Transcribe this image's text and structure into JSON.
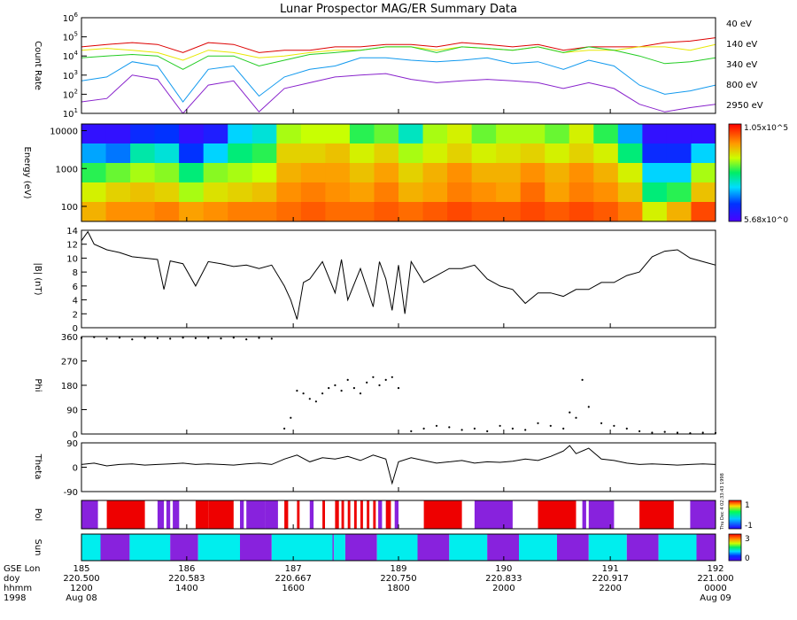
{
  "title": "Lunar Prospector MAG/ER Summary Data",
  "chart_data": [
    {
      "type": "line",
      "panel": "count-rate",
      "ylabel": "Count Rate",
      "yscale": "log",
      "ylim": [
        10,
        1000000
      ],
      "ytick_labels": [
        "10^1",
        "10^2",
        "10^3",
        "10^4",
        "10^5",
        "10^6"
      ],
      "x": [
        220.5,
        220.52,
        220.54,
        220.56,
        220.58,
        220.6,
        220.62,
        220.64,
        220.66,
        220.68,
        220.7,
        220.72,
        220.74,
        220.76,
        220.78,
        220.8,
        220.82,
        220.84,
        220.86,
        220.88,
        220.9,
        220.92,
        220.94,
        220.96,
        220.98,
        221.0
      ],
      "series": [
        {
          "name": "40 eV",
          "color": "#dd0000",
          "values": [
            30000,
            40000,
            50000,
            40000,
            15000,
            50000,
            40000,
            15000,
            20000,
            20000,
            30000,
            30000,
            40000,
            40000,
            30000,
            50000,
            40000,
            30000,
            40000,
            20000,
            30000,
            30000,
            30000,
            50000,
            60000,
            90000
          ]
        },
        {
          "name": "140 eV",
          "color": "#e8e800",
          "values": [
            20000,
            25000,
            20000,
            15000,
            6000,
            20000,
            15000,
            8000,
            10000,
            15000,
            20000,
            20000,
            30000,
            30000,
            20000,
            30000,
            25000,
            20000,
            30000,
            15000,
            20000,
            20000,
            30000,
            30000,
            20000,
            40000
          ]
        },
        {
          "name": "340 eV",
          "color": "#22cc22",
          "values": [
            8000,
            10000,
            12000,
            10000,
            2000,
            10000,
            10000,
            3000,
            6000,
            12000,
            15000,
            20000,
            30000,
            30000,
            15000,
            30000,
            25000,
            20000,
            30000,
            15000,
            30000,
            20000,
            10000,
            4000,
            5000,
            8000
          ]
        },
        {
          "name": "800 eV",
          "color": "#1199ee",
          "values": [
            500,
            800,
            5000,
            3000,
            40,
            2000,
            3000,
            80,
            800,
            2000,
            3000,
            8000,
            8000,
            6000,
            5000,
            6000,
            8000,
            4000,
            5000,
            2000,
            6000,
            3000,
            300,
            100,
            150,
            300
          ]
        },
        {
          "name": "2950 eV",
          "color": "#8822cc",
          "values": [
            40,
            60,
            1000,
            600,
            10,
            300,
            500,
            12,
            200,
            400,
            800,
            1000,
            1200,
            600,
            400,
            500,
            600,
            500,
            400,
            200,
            400,
            200,
            30,
            12,
            20,
            30
          ]
        }
      ]
    },
    {
      "type": "heatmap",
      "panel": "energy-spectrogram",
      "ylabel": "Energy (eV)",
      "yscale": "log",
      "ylim": [
        40,
        15000
      ],
      "ytick_labels": [
        "100",
        "1000",
        "10000"
      ],
      "colorbar": {
        "max_label": "1.05x10^5",
        "min_label": "5.68x10^0",
        "scale": "log"
      },
      "energies_eV": [
        20000,
        5000,
        1000,
        300,
        80
      ],
      "x": [
        220.5,
        220.52,
        220.54,
        220.56,
        220.58,
        220.6,
        220.62,
        220.64,
        220.66,
        220.68,
        220.7,
        220.72,
        220.74,
        220.76,
        220.78,
        220.8,
        220.82,
        220.84,
        220.86,
        220.88,
        220.9,
        220.92,
        220.94,
        220.96,
        220.98,
        221.0
      ],
      "log_flux": [
        [
          1.0,
          1.0,
          1.4,
          1.5,
          1.0,
          1.2,
          2.2,
          2.4,
          3.4,
          3.5,
          3.5,
          3.0,
          3.2,
          2.5,
          3.4,
          3.6,
          3.2,
          3.4,
          3.4,
          3.2,
          3.6,
          3.0,
          2.0,
          1.0,
          1.0,
          1.0
        ],
        [
          2.0,
          1.8,
          2.6,
          2.4,
          1.5,
          2.2,
          2.8,
          3.0,
          3.8,
          3.8,
          3.9,
          3.6,
          3.8,
          3.4,
          3.6,
          3.8,
          3.6,
          3.7,
          3.8,
          3.6,
          3.8,
          3.6,
          2.8,
          1.4,
          1.4,
          2.2
        ],
        [
          3.0,
          3.2,
          3.4,
          3.3,
          2.8,
          3.3,
          3.4,
          3.5,
          4.0,
          4.1,
          4.1,
          3.9,
          4.1,
          3.8,
          4.0,
          4.2,
          4.0,
          4.0,
          4.2,
          4.0,
          4.2,
          4.0,
          3.6,
          2.2,
          2.2,
          3.4
        ],
        [
          3.6,
          3.8,
          3.9,
          3.8,
          3.4,
          3.7,
          3.8,
          3.9,
          4.2,
          4.3,
          4.2,
          4.1,
          4.3,
          4.0,
          4.1,
          4.3,
          4.2,
          4.1,
          4.4,
          4.1,
          4.3,
          4.2,
          3.9,
          2.8,
          3.0,
          3.9
        ],
        [
          4.0,
          4.2,
          4.2,
          4.3,
          4.1,
          4.2,
          4.3,
          4.3,
          4.4,
          4.5,
          4.4,
          4.4,
          4.5,
          4.4,
          4.5,
          4.6,
          4.5,
          4.5,
          4.6,
          4.5,
          4.6,
          4.5,
          4.3,
          3.6,
          4.0,
          4.6
        ]
      ]
    },
    {
      "type": "line",
      "panel": "field-magnitude",
      "ylabel": "|B| (nT)",
      "ylim": [
        0,
        14
      ],
      "yticks": [
        0,
        2,
        4,
        6,
        8,
        10,
        12,
        14
      ],
      "x": [
        220.5,
        220.505,
        220.51,
        220.52,
        220.53,
        220.54,
        220.55,
        220.56,
        220.565,
        220.57,
        220.58,
        220.59,
        220.6,
        220.61,
        220.62,
        220.63,
        220.64,
        220.65,
        220.66,
        220.665,
        220.67,
        220.675,
        220.68,
        220.69,
        220.7,
        220.705,
        220.71,
        220.72,
        220.73,
        220.735,
        220.74,
        220.745,
        220.75,
        220.755,
        220.76,
        220.77,
        220.78,
        220.79,
        220.8,
        220.81,
        220.82,
        220.83,
        220.84,
        220.85,
        220.86,
        220.87,
        220.88,
        220.89,
        220.9,
        220.91,
        220.92,
        220.93,
        220.94,
        220.95,
        220.96,
        220.97,
        220.98,
        220.99,
        221.0
      ],
      "values": [
        12.5,
        13.8,
        12.0,
        11.2,
        10.8,
        10.2,
        10.0,
        9.8,
        5.5,
        9.6,
        9.2,
        6.0,
        9.5,
        9.2,
        8.8,
        9.0,
        8.5,
        9.0,
        6.0,
        4.0,
        1.2,
        6.5,
        7.0,
        9.5,
        5.0,
        9.8,
        4.0,
        8.5,
        3.0,
        9.5,
        7.0,
        2.5,
        9.0,
        2.0,
        9.5,
        6.5,
        7.5,
        8.5,
        8.5,
        9.0,
        7.0,
        6.0,
        5.5,
        3.5,
        5.0,
        5.0,
        4.5,
        5.5,
        5.5,
        6.5,
        6.5,
        7.5,
        8.0,
        10.2,
        11.0,
        11.2,
        10.0,
        9.5,
        9.0
      ]
    },
    {
      "type": "scatter",
      "panel": "phi",
      "ylabel": "Phi",
      "ylim": [
        0,
        360
      ],
      "yticks": [
        0,
        90,
        180,
        270,
        360
      ],
      "x": [
        220.5,
        220.51,
        220.52,
        220.53,
        220.54,
        220.55,
        220.56,
        220.57,
        220.58,
        220.59,
        220.6,
        220.61,
        220.62,
        220.63,
        220.64,
        220.65,
        220.66,
        220.665,
        220.67,
        220.675,
        220.68,
        220.685,
        220.69,
        220.695,
        220.7,
        220.705,
        220.71,
        220.715,
        220.72,
        220.725,
        220.73,
        220.735,
        220.74,
        220.745,
        220.75,
        220.76,
        220.77,
        220.78,
        220.79,
        220.8,
        220.81,
        220.82,
        220.83,
        220.84,
        220.85,
        220.86,
        220.87,
        220.88,
        220.885,
        220.89,
        220.895,
        220.9,
        220.91,
        220.92,
        220.93,
        220.94,
        220.95,
        220.96,
        220.97,
        220.98,
        220.99,
        221.0
      ],
      "values": [
        355,
        358,
        352,
        356,
        350,
        355,
        354,
        352,
        356,
        354,
        355,
        353,
        356,
        350,
        355,
        352,
        20,
        60,
        160,
        150,
        130,
        120,
        150,
        170,
        180,
        160,
        200,
        170,
        150,
        190,
        210,
        180,
        200,
        210,
        170,
        10,
        20,
        30,
        25,
        15,
        20,
        10,
        30,
        20,
        15,
        40,
        30,
        20,
        80,
        60,
        200,
        100,
        40,
        30,
        20,
        10,
        5,
        8,
        5,
        3,
        5,
        4
      ]
    },
    {
      "type": "line",
      "panel": "theta",
      "ylabel": "Theta",
      "ylim": [
        -90,
        90
      ],
      "yticks": [
        -90,
        0,
        90
      ],
      "x": [
        220.5,
        220.51,
        220.52,
        220.53,
        220.54,
        220.55,
        220.56,
        220.57,
        220.58,
        220.59,
        220.6,
        220.61,
        220.62,
        220.63,
        220.64,
        220.65,
        220.66,
        220.67,
        220.68,
        220.69,
        220.7,
        220.71,
        220.72,
        220.73,
        220.74,
        220.745,
        220.75,
        220.76,
        220.77,
        220.78,
        220.79,
        220.8,
        220.81,
        220.82,
        220.83,
        220.84,
        220.85,
        220.86,
        220.87,
        220.88,
        220.885,
        220.89,
        220.9,
        220.91,
        220.92,
        220.93,
        220.94,
        220.95,
        220.96,
        220.97,
        220.98,
        220.99,
        221.0
      ],
      "values": [
        10,
        15,
        5,
        10,
        12,
        8,
        10,
        12,
        15,
        10,
        12,
        10,
        8,
        12,
        15,
        10,
        30,
        45,
        20,
        35,
        30,
        40,
        25,
        45,
        30,
        -60,
        20,
        35,
        25,
        15,
        20,
        25,
        15,
        20,
        18,
        22,
        30,
        25,
        40,
        60,
        80,
        50,
        70,
        30,
        25,
        15,
        10,
        12,
        10,
        8,
        10,
        12,
        10
      ]
    }
  ],
  "right_labels": {
    "pol": {
      "ylabel": "Pol",
      "colorbar_max": "1",
      "colorbar_min": "-1"
    },
    "sun": {
      "ylabel": "Sun",
      "colorbar_max": "3",
      "colorbar_min": "0"
    }
  },
  "pol_segments": [
    {
      "x0": 220.5,
      "x1": 220.513,
      "state": "purple"
    },
    {
      "x0": 220.52,
      "x1": 220.55,
      "state": "red"
    },
    {
      "x0": 220.56,
      "x1": 220.565,
      "state": "purple"
    },
    {
      "x0": 220.567,
      "x1": 220.57,
      "state": "purple"
    },
    {
      "x0": 220.572,
      "x1": 220.577,
      "state": "purple"
    },
    {
      "x0": 220.59,
      "x1": 220.6,
      "state": "red"
    },
    {
      "x0": 220.6,
      "x1": 220.62,
      "state": "red"
    },
    {
      "x0": 220.625,
      "x1": 220.628,
      "state": "purple"
    },
    {
      "x0": 220.63,
      "x1": 220.645,
      "state": "purple"
    },
    {
      "x0": 220.645,
      "x1": 220.655,
      "state": "purple"
    },
    {
      "x0": 220.66,
      "x1": 220.663,
      "state": "red"
    },
    {
      "x0": 220.67,
      "x1": 220.672,
      "state": "red"
    },
    {
      "x0": 220.68,
      "x1": 220.683,
      "state": "purple"
    },
    {
      "x0": 220.69,
      "x1": 220.692,
      "state": "red"
    },
    {
      "x0": 220.7,
      "x1": 220.703,
      "state": "red"
    },
    {
      "x0": 220.705,
      "x1": 220.707,
      "state": "red"
    },
    {
      "x0": 220.71,
      "x1": 220.712,
      "state": "red"
    },
    {
      "x0": 220.715,
      "x1": 220.717,
      "state": "red"
    },
    {
      "x0": 220.72,
      "x1": 220.722,
      "state": "red"
    },
    {
      "x0": 220.725,
      "x1": 220.727,
      "state": "red"
    },
    {
      "x0": 220.73,
      "x1": 220.732,
      "state": "red"
    },
    {
      "x0": 220.734,
      "x1": 220.737,
      "state": "purple"
    },
    {
      "x0": 220.74,
      "x1": 220.744,
      "state": "red"
    },
    {
      "x0": 220.747,
      "x1": 220.75,
      "state": "purple"
    },
    {
      "x0": 220.77,
      "x1": 220.8,
      "state": "red"
    },
    {
      "x0": 220.81,
      "x1": 220.84,
      "state": "purple"
    },
    {
      "x0": 220.86,
      "x1": 220.89,
      "state": "red"
    },
    {
      "x0": 220.895,
      "x1": 220.898,
      "state": "purple"
    },
    {
      "x0": 220.9,
      "x1": 220.92,
      "state": "purple"
    },
    {
      "x0": 220.94,
      "x1": 220.967,
      "state": "red"
    },
    {
      "x0": 220.98,
      "x1": 221.0,
      "state": "purple"
    }
  ],
  "sun_segments": [
    {
      "x0": 220.5,
      "x1": 220.515,
      "state": "cyan"
    },
    {
      "x0": 220.515,
      "x1": 220.538,
      "state": "purple"
    },
    {
      "x0": 220.538,
      "x1": 220.57,
      "state": "cyan"
    },
    {
      "x0": 220.57,
      "x1": 220.592,
      "state": "purple"
    },
    {
      "x0": 220.592,
      "x1": 220.625,
      "state": "cyan"
    },
    {
      "x0": 220.625,
      "x1": 220.65,
      "state": "purple"
    },
    {
      "x0": 220.65,
      "x1": 220.698,
      "state": "cyan"
    },
    {
      "x0": 220.698,
      "x1": 220.699,
      "state": "purple"
    },
    {
      "x0": 220.699,
      "x1": 220.708,
      "state": "cyan"
    },
    {
      "x0": 220.708,
      "x1": 220.733,
      "state": "purple"
    },
    {
      "x0": 220.733,
      "x1": 220.765,
      "state": "cyan"
    },
    {
      "x0": 220.765,
      "x1": 220.79,
      "state": "purple"
    },
    {
      "x0": 220.79,
      "x1": 220.82,
      "state": "cyan"
    },
    {
      "x0": 220.82,
      "x1": 220.845,
      "state": "purple"
    },
    {
      "x0": 220.845,
      "x1": 220.875,
      "state": "cyan"
    },
    {
      "x0": 220.875,
      "x1": 220.9,
      "state": "purple"
    },
    {
      "x0": 220.9,
      "x1": 220.93,
      "state": "cyan"
    },
    {
      "x0": 220.93,
      "x1": 220.955,
      "state": "purple"
    },
    {
      "x0": 220.955,
      "x1": 220.985,
      "state": "cyan"
    },
    {
      "x0": 220.985,
      "x1": 221.0,
      "state": "purple"
    }
  ],
  "state_colors": {
    "red": "#ee0000",
    "purple": "#8822dd",
    "cyan": "#00eeee",
    "white": "#ffffff"
  },
  "xaxis": {
    "row_labels": [
      "GSE Lon",
      "doy",
      "hhmm",
      "1998"
    ],
    "ticks": [
      {
        "doy": "220.500",
        "lon": "185",
        "hhmm": "1200",
        "date": "Aug 08"
      },
      {
        "doy": "220.583",
        "lon": "186",
        "hhmm": "1400",
        "date": ""
      },
      {
        "doy": "220.667",
        "lon": "187",
        "hhmm": "1600",
        "date": ""
      },
      {
        "doy": "220.750",
        "lon": "189",
        "hhmm": "1800",
        "date": ""
      },
      {
        "doy": "220.833",
        "lon": "190",
        "hhmm": "2000",
        "date": ""
      },
      {
        "doy": "220.917",
        "lon": "191",
        "hhmm": "2200",
        "date": ""
      },
      {
        "doy": "221.000",
        "lon": "192",
        "hhmm": "0000",
        "date": "Aug 09"
      }
    ]
  },
  "stamp_text": "Thu Dec  4 02:33:43 1998"
}
